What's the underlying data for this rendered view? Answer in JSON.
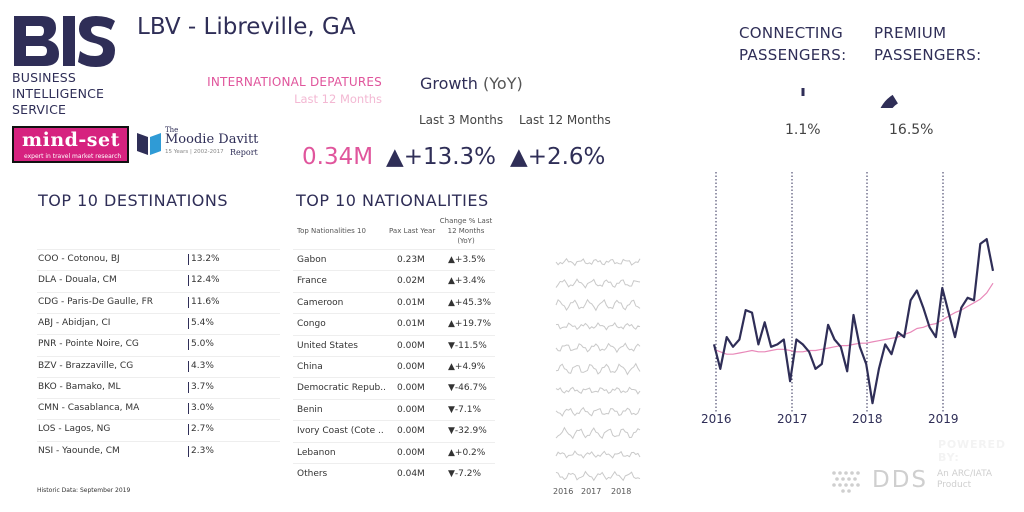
{
  "brand": {
    "logo_text": "BIS",
    "lines": [
      "BUSINESS",
      "INTELLIGENCE",
      "SERVICE"
    ],
    "partner1": {
      "big": "mind-set",
      "small": "expert in travel market research"
    },
    "partner2": {
      "pre": "The",
      "name": "Moodie Davitt",
      "years": "15 Years | 2002-2017",
      "report": "Report"
    }
  },
  "header": {
    "title": "LBV - Libreville, GA"
  },
  "kpi": {
    "intl_label_a": "INTERNATIONAL",
    "intl_label_b": "DEPATURES",
    "intl_sub": "Last 12 Months",
    "pax_value": "0.34M",
    "growth_title": "Growth",
    "growth_yoy": "(YoY)",
    "last3_label": "Last 3 Months",
    "last12_label": "Last 12 Months",
    "growth3_value": "▲+13.3%",
    "growth12_value": "▲+2.6%"
  },
  "connecting": {
    "label1": "CONNECTING",
    "label2": "PASSENGERS:",
    "value": "1.1%",
    "fraction": 0.011
  },
  "premium": {
    "label1": "PREMIUM",
    "label2": "PASSENGERS:",
    "value": "16.5%",
    "fraction": 0.165
  },
  "destinations": {
    "title": "TOP 10 DESTINATIONS",
    "rows": [
      {
        "name": "COO - Cotonou, BJ",
        "pct": "13.2%"
      },
      {
        "name": "DLA - Douala, CM",
        "pct": "12.4%"
      },
      {
        "name": "CDG - Paris-De Gaulle, FR",
        "pct": "11.6%"
      },
      {
        "name": "ABJ - Abidjan, CI",
        "pct": "5.4%"
      },
      {
        "name": "PNR - Pointe Noire, CG",
        "pct": "5.0%"
      },
      {
        "name": "BZV - Brazzaville, CG",
        "pct": "4.3%"
      },
      {
        "name": "BKO - Bamako, ML",
        "pct": "3.7%"
      },
      {
        "name": "CMN - Casablanca, MA",
        "pct": "3.0%"
      },
      {
        "name": "LOS - Lagos, NG",
        "pct": "2.7%"
      },
      {
        "name": "NSI - Yaounde, CM",
        "pct": "2.3%"
      }
    ]
  },
  "nationalities": {
    "title": "TOP 10 NATIONALITIES",
    "col_name": "Top Nationalities 10",
    "col_pax": "Pax Last Year",
    "col_change": [
      "Change % Last",
      "12 Months",
      "(YoY)"
    ],
    "rows": [
      {
        "name": "Gabon",
        "pax": "0.23M",
        "change": "▲+3.5%"
      },
      {
        "name": "France",
        "pax": "0.02M",
        "change": "▲+3.4%"
      },
      {
        "name": "Cameroon",
        "pax": "0.01M",
        "change": "▲+45.3%"
      },
      {
        "name": "Congo",
        "pax": "0.01M",
        "change": "▲+19.7%"
      },
      {
        "name": "United States",
        "pax": "0.00M",
        "change": "▼-11.5%"
      },
      {
        "name": "China",
        "pax": "0.00M",
        "change": "▲+4.9%"
      },
      {
        "name": "Democratic Repub..",
        "pax": "0.00M",
        "change": "▼-46.7%"
      },
      {
        "name": "Benin",
        "pax": "0.00M",
        "change": "▼-7.1%"
      },
      {
        "name": "Ivory Coast (Cote ..",
        "pax": "0.00M",
        "change": "▼-32.9%"
      },
      {
        "name": "Lebanon",
        "pax": "0.00M",
        "change": "▲+0.2%"
      },
      {
        "name": "Others",
        "pax": "0.04M",
        "change": "▼-7.2%"
      }
    ],
    "spark_years": [
      "2016",
      "2017",
      "2018"
    ]
  },
  "footer": {
    "historic_label": "Historic Data:",
    "historic_value": "September 2019",
    "powered": "POWERED BY:",
    "dds": "DDS",
    "dds_sub1": "An ARC/IATA",
    "dds_sub2": "Product"
  },
  "colors": {
    "navy": "#2f2e57",
    "pink": "#e0559c",
    "light_pink": "#f3b8d3"
  },
  "chart_data": {
    "type": "line",
    "title": "",
    "x_ticks": [
      "2016",
      "2017",
      "2018",
      "2019"
    ],
    "series": [
      {
        "values": [
          1.3,
          0.3,
          1.6,
          1.2,
          1.5,
          2.7,
          2.6,
          1.3,
          2.2,
          1.2,
          1.3,
          1.5,
          -0.2,
          1.5,
          1.3,
          1.0,
          0.3,
          0.5,
          2.1,
          1.5,
          1.2,
          0.2,
          2.5,
          1.2,
          0.5,
          -1.1,
          0.3,
          1.3,
          0.9,
          1.8,
          1.6,
          3.1,
          3.5,
          2.8,
          2.0,
          1.6,
          3.6,
          2.6,
          1.6,
          2.8,
          3.2,
          3.1,
          5.4,
          5.6,
          4.3
        ]
      },
      {
        "values": [
          1.1,
          1.0,
          0.9,
          0.9,
          0.95,
          1.0,
          1.05,
          1.0,
          1.0,
          1.05,
          1.1,
          1.1,
          1.05,
          1.0,
          1.0,
          1.05,
          1.05,
          1.1,
          1.15,
          1.2,
          1.25,
          1.25,
          1.3,
          1.35,
          1.35,
          1.4,
          1.45,
          1.5,
          1.55,
          1.6,
          1.7,
          1.8,
          1.95,
          2.0,
          2.1,
          2.15,
          2.3,
          2.45,
          2.6,
          2.7,
          2.85,
          3.0,
          3.15,
          3.4,
          3.8
        ]
      }
    ],
    "ylim": [
      -1.5,
      8.5
    ],
    "grid": false
  }
}
